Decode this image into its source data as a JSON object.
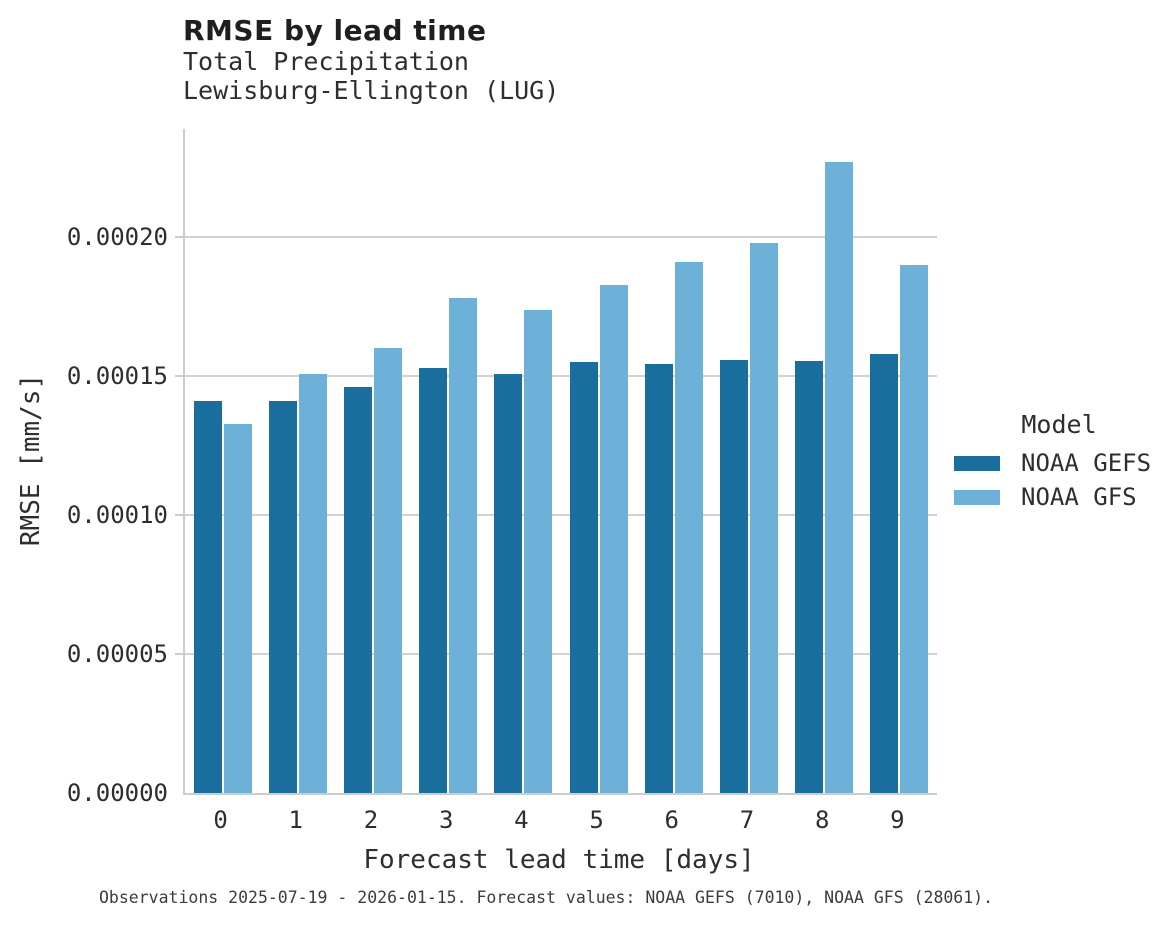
{
  "header": {
    "title": "RMSE by lead time",
    "subtitle_line1": "Total Precipitation",
    "subtitle_line2": "Lewisburg-Ellington (LUG)"
  },
  "footer": {
    "caption": "Observations 2025-07-19 - 2026-01-15. Forecast values: NOAA GEFS (7010), NOAA GFS (28061)."
  },
  "legend": {
    "title": "Model",
    "items": [
      {
        "label": "NOAA GEFS",
        "color": "#1a6e9e"
      },
      {
        "label": "NOAA GFS",
        "color": "#6db1d8"
      }
    ]
  },
  "colors": {
    "gefs_bar": "#1a6e9e",
    "gfs_bar": "#6db1d8",
    "grid": "#d2d2d2",
    "spine": "#cdcdcd",
    "text": "#2e2e2e",
    "footer_text": "#3c3c3c"
  },
  "chart_data": {
    "type": "bar",
    "title": "RMSE by lead time",
    "subtitle": [
      "Total Precipitation",
      "Lewisburg-Ellington (LUG)"
    ],
    "xlabel": "Forecast lead time [days]",
    "ylabel": "RMSE [mm/s]",
    "categories": [
      "0",
      "1",
      "2",
      "3",
      "4",
      "5",
      "6",
      "7",
      "8",
      "9"
    ],
    "series": [
      {
        "name": "NOAA GEFS",
        "color": "#1a6e9e",
        "values": [
          0.000141,
          0.000141,
          0.000146,
          0.000153,
          0.000151,
          0.000155,
          0.0001545,
          0.000156,
          0.0001555,
          0.000158
        ]
      },
      {
        "name": "NOAA GFS",
        "color": "#6db1d8",
        "values": [
          0.000133,
          0.000151,
          0.00016,
          0.000178,
          0.000174,
          0.000183,
          0.000191,
          0.000198,
          0.000227,
          0.00019
        ]
      }
    ],
    "ylim": [
      0,
      0.000239
    ],
    "yticks": [
      {
        "value": 0.0,
        "label": "0.00000"
      },
      {
        "value": 5e-05,
        "label": "0.00005"
      },
      {
        "value": 0.0001,
        "label": "0.00010"
      },
      {
        "value": 0.00015,
        "label": "0.00015"
      },
      {
        "value": 0.0002,
        "label": "0.00020"
      }
    ],
    "grid": "horizontal",
    "legend_title": "Model",
    "legend_position": "right"
  }
}
